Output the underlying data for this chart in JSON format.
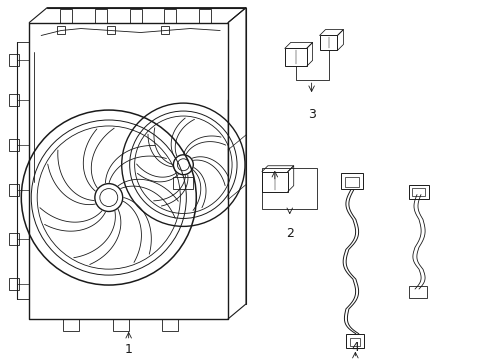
{
  "background_color": "#ffffff",
  "line_color": "#1a1a1a",
  "line_width": 0.7,
  "fig_width": 4.89,
  "fig_height": 3.6,
  "dpi": 100,
  "label_fontsize": 8
}
